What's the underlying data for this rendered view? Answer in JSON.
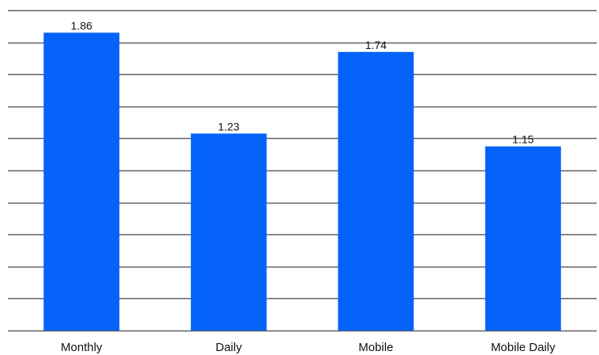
{
  "chart_data": {
    "type": "bar",
    "categories": [
      "Monthly",
      "Daily",
      "Mobile",
      "Mobile Daily"
    ],
    "values": [
      1.86,
      1.23,
      1.74,
      1.15
    ],
    "data_labels": [
      "1.86",
      "1.23",
      "1.74",
      "1.15"
    ],
    "title": "",
    "xlabel": "",
    "ylabel": "",
    "ylim": [
      0,
      2.0
    ],
    "gridlines": [
      0,
      0.2,
      0.4,
      0.6,
      0.8,
      1.0,
      1.2,
      1.4,
      1.6,
      1.8,
      2.0
    ],
    "grid": true,
    "legend": "none",
    "y_tick_labels_shown": false,
    "colors": {
      "bar": "#0563fb",
      "grid": "#606060",
      "text": "#111111",
      "background": "#ffffff"
    }
  }
}
